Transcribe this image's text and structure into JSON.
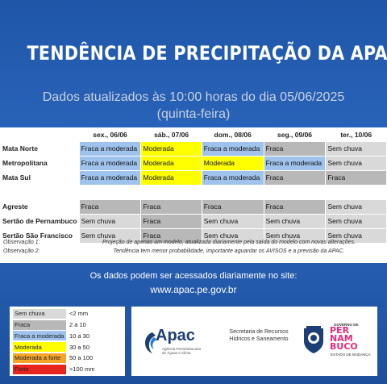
{
  "header": {
    "title": "TENDÊNCIA  DE PRECIPITAÇÃO DA APAC",
    "updated": "Dados atualizados às 10:00 horas do dia 05/06/2025",
    "weekday": "(quinta-feira)"
  },
  "forecast": {
    "days": [
      "sex., 06/06",
      "sáb., 07/06",
      "dom., 08/06",
      "seg., 09/06",
      "ter., 10/06"
    ],
    "rows": [
      {
        "region": "Mata Norte",
        "cells": [
          {
            "text": "Fraca a moderada",
            "level": "fmod"
          },
          {
            "text": "Moderada",
            "level": "mod"
          },
          {
            "text": "Fraca a moderada",
            "level": "fmod"
          },
          {
            "text": "Fraca",
            "level": "fraca"
          },
          {
            "text": "Sem chuva",
            "level": "sem"
          }
        ]
      },
      {
        "region": "Metropolitana",
        "cells": [
          {
            "text": "Fraca a moderada",
            "level": "fmod"
          },
          {
            "text": "Moderada",
            "level": "mod"
          },
          {
            "text": "Moderada",
            "level": "mod"
          },
          {
            "text": "Fraca a moderada",
            "level": "fmod"
          },
          {
            "text": "Sem chuva",
            "level": "sem"
          }
        ]
      },
      {
        "region": "Mata Sul",
        "cells": [
          {
            "text": "Fraca a moderada",
            "level": "fmod"
          },
          {
            "text": "Moderada",
            "level": "mod"
          },
          {
            "text": "Fraca a moderada",
            "level": "fmod"
          },
          {
            "text": "Fraca",
            "level": "fraca"
          },
          {
            "text": "Fraca",
            "level": "fraca"
          }
        ]
      },
      {
        "region": "Agreste",
        "cells": [
          {
            "text": "Fraca",
            "level": "fraca"
          },
          {
            "text": "Fraca",
            "level": "fraca"
          },
          {
            "text": "Fraca",
            "level": "fraca"
          },
          {
            "text": "Fraca",
            "level": "fraca"
          },
          {
            "text": "Sem chuva",
            "level": "sem"
          }
        ]
      },
      {
        "region": "Sertão de Pernambuco",
        "cells": [
          {
            "text": "Sem chuva",
            "level": "sem"
          },
          {
            "text": "Fraca",
            "level": "fraca"
          },
          {
            "text": "Sem chuva",
            "level": "sem"
          },
          {
            "text": "Sem chuva",
            "level": "sem"
          },
          {
            "text": "Sem chuva",
            "level": "sem"
          }
        ]
      },
      {
        "region": "Sertão São Francisco",
        "cells": [
          {
            "text": "Sem chuva",
            "level": "sem"
          },
          {
            "text": "Fraca",
            "level": "fraca"
          },
          {
            "text": "Sem chuva",
            "level": "sem"
          },
          {
            "text": "Sem chuva",
            "level": "sem"
          },
          {
            "text": "Sem chuva",
            "level": "sem"
          }
        ]
      }
    ]
  },
  "notes": [
    {
      "label": "Observação 1:",
      "text": "Projeção de apenas um modelo, atualizada diariamente pela saída do modelo com novas alterações."
    },
    {
      "label": "Observação 2:",
      "text": "Tendência tem menor probabilidade, importante aguardar os AVISOS e a previsão da APAC."
    }
  ],
  "site": {
    "line1": "Os dados podem ser acessados diariamente no site:",
    "url": "www.apac.pe.gov.br"
  },
  "legend": [
    {
      "label": "Sem chuva",
      "range": "<2 mm",
      "level": "sem"
    },
    {
      "label": "Fraca",
      "range": "2 a 10",
      "level": "fraca"
    },
    {
      "label": "Fraca a moderada",
      "range": "10 a 30",
      "level": "fmod"
    },
    {
      "label": "Moderada",
      "range": "30 a 50",
      "level": "mod"
    },
    {
      "label": "Moderada a forte",
      "range": "50 a 100",
      "level": "mfor"
    },
    {
      "label": "Forte",
      "range": ">100 mm",
      "level": "forte"
    }
  ],
  "colors": {
    "sem": "#d9d9d9",
    "fraca": "#b8b8b8",
    "fmod": "#9fc3ec",
    "mod": "#ffff00",
    "mfor": "#f4a52a",
    "forte": "#e8241f",
    "background": "#2c67be"
  },
  "footer": {
    "apac_name": "Apac",
    "apac_full": "Agência Pernambucana de Águas e Clima",
    "secretaria": "Secretaria de Recursos Hídricos e Saneamento",
    "gov_small": "GOVERNO DE",
    "state_word": [
      "PER",
      "NAM",
      "BUCO"
    ],
    "tagline": "ESTADO DE MUDANÇA",
    "icons": [
      "apac-swirl-icon",
      "state-seal-icon"
    ]
  }
}
